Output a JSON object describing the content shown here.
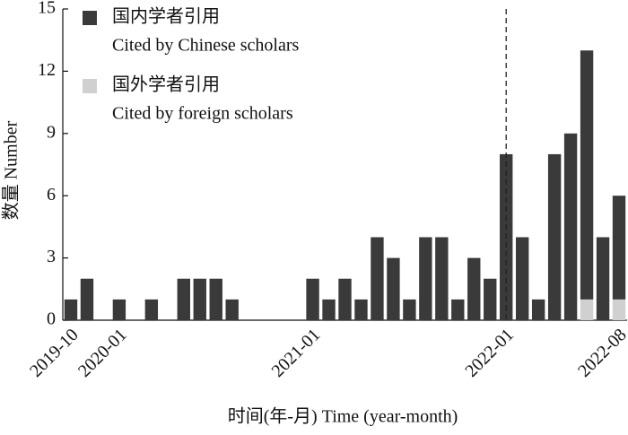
{
  "chart_data": {
    "type": "bar",
    "stacked": true,
    "x_label": "时间(年-月) Time (year-month)",
    "y_label": "数量 Number",
    "categories": [
      "2019-10",
      null,
      null,
      "2020-01",
      null,
      null,
      null,
      null,
      null,
      null,
      null,
      null,
      null,
      null,
      null,
      "2021-01",
      null,
      null,
      null,
      null,
      null,
      null,
      null,
      null,
      null,
      null,
      null,
      "2022-01",
      null,
      null,
      null,
      null,
      null,
      null,
      "2022-08"
    ],
    "series": [
      {
        "name": "国内学者引用",
        "name_en": "Cited by Chinese scholars",
        "color": "#3a3a3a",
        "values": [
          1,
          2,
          0,
          1,
          0,
          1,
          0,
          2,
          2,
          2,
          1,
          0,
          0,
          0,
          0,
          2,
          1,
          2,
          1,
          4,
          3,
          1,
          4,
          4,
          1,
          3,
          2,
          8,
          4,
          1,
          8,
          9,
          12,
          4,
          5
        ]
      },
      {
        "name": "国外学者引用",
        "name_en": "Cited by foreign scholars",
        "color": "#d0d0d0",
        "values": [
          0,
          0,
          0,
          0,
          0,
          0,
          0,
          0,
          0,
          0,
          0,
          0,
          0,
          0,
          0,
          0,
          0,
          0,
          0,
          0,
          0,
          0,
          0,
          0,
          0,
          0,
          0,
          0,
          0,
          0,
          0,
          0,
          1,
          0,
          1
        ]
      }
    ],
    "vline": "2022-01",
    "ylim": [
      0,
      15
    ],
    "yticks": [
      0,
      3,
      6,
      9,
      12,
      15
    ],
    "grid": false,
    "legend": "upper left"
  }
}
